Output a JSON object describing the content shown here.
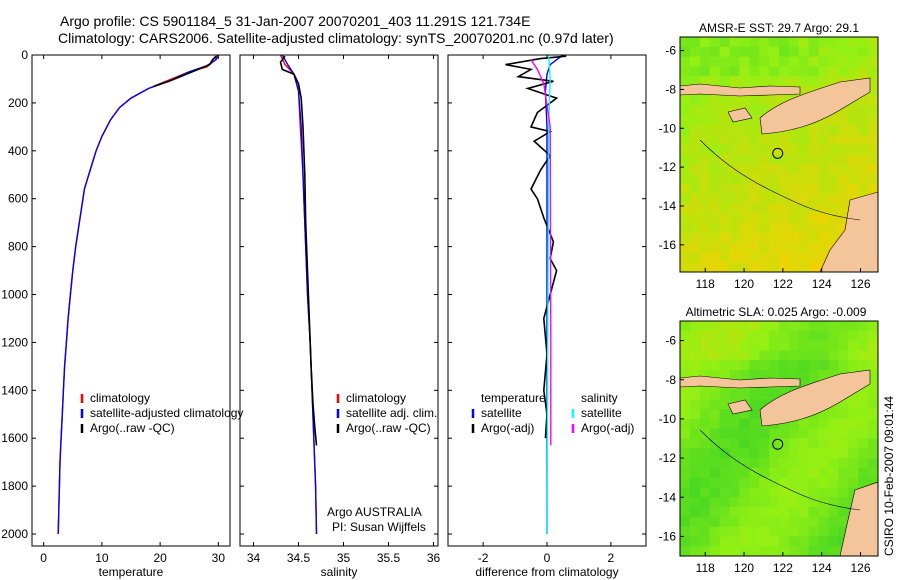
{
  "header": {
    "line1": "Argo profile: CS 5901184_5 31-Jan-2007 20070201_403 11.291S 121.734E",
    "line2": "Climatology: CARS2006. Satellite-adjusted climatology: synTS_20070201.nc (0.97d later)"
  },
  "colors": {
    "climatology": "#ff0000",
    "satellite": "#0000ff",
    "argo": "#000000",
    "salinity_satellite": "#00ffff",
    "salinity_argo": "#ff00ff",
    "land": "#f4c49a"
  },
  "chart_data": [
    {
      "type": "line",
      "xlabel": "temperature",
      "ylabel": "",
      "xlim": [
        -2,
        32
      ],
      "ylim": [
        2050,
        0
      ],
      "xticks": [
        0,
        10,
        20,
        30
      ],
      "yticks": [
        0,
        200,
        400,
        600,
        800,
        1000,
        1200,
        1400,
        1600,
        1800,
        2000
      ],
      "legend": {
        "position": "lower-right",
        "entries": [
          "climatology",
          "satellite-adjusted climatology",
          "Argo(..raw -QC)"
        ]
      },
      "series": [
        {
          "name": "climatology",
          "color": "#ff0000",
          "points": [
            [
              29.8,
              0
            ],
            [
              29.5,
              20
            ],
            [
              28,
              50
            ],
            [
              25,
              70
            ],
            [
              21,
              110
            ],
            [
              18,
              140
            ],
            [
              15,
              180
            ],
            [
              13,
              220
            ],
            [
              11.5,
              270
            ],
            [
              10,
              340
            ],
            [
              9,
              400
            ],
            [
              8,
              480
            ],
            [
              7,
              560
            ],
            [
              6.5,
              640
            ],
            [
              6,
              720
            ],
            [
              5.5,
              800
            ],
            [
              5,
              900
            ],
            [
              4.6,
              1000
            ],
            [
              4.2,
              1100
            ],
            [
              3.9,
              1200
            ],
            [
              3.6,
              1300
            ],
            [
              3.4,
              1400
            ],
            [
              3.2,
              1500
            ],
            [
              3,
              1600
            ],
            [
              2.8,
              1700
            ],
            [
              2.7,
              1800
            ],
            [
              2.6,
              1900
            ],
            [
              2.5,
              2000
            ]
          ]
        },
        {
          "name": "satellite-adjusted climatology",
          "color": "#0000ff",
          "points": [
            [
              30,
              0
            ],
            [
              29.6,
              20
            ],
            [
              28,
              45
            ],
            [
              25,
              70
            ],
            [
              21.5,
              110
            ],
            [
              18,
              140
            ],
            [
              15,
              180
            ],
            [
              13,
              220
            ],
            [
              11.5,
              270
            ],
            [
              10,
              340
            ],
            [
              9,
              400
            ],
            [
              8,
              480
            ],
            [
              7,
              560
            ],
            [
              6.5,
              640
            ],
            [
              6,
              720
            ],
            [
              5.5,
              800
            ],
            [
              5,
              900
            ],
            [
              4.6,
              1000
            ],
            [
              4.2,
              1100
            ],
            [
              3.9,
              1200
            ],
            [
              3.6,
              1300
            ],
            [
              3.4,
              1400
            ],
            [
              3.2,
              1500
            ],
            [
              3,
              1600
            ],
            [
              2.8,
              1700
            ],
            [
              2.7,
              1800
            ],
            [
              2.6,
              1900
            ],
            [
              2.5,
              2000
            ]
          ]
        },
        {
          "name": "Argo(..raw -QC)",
          "color": "#000000",
          "points": [
            [
              29.6,
              5
            ],
            [
              29,
              20
            ],
            [
              28.5,
              40
            ],
            [
              26,
              65
            ],
            [
              22,
              105
            ],
            [
              19,
              130
            ]
          ]
        }
      ]
    },
    {
      "type": "line",
      "xlabel": "salinity",
      "ylabel": "",
      "xlim": [
        33.85,
        36.05
      ],
      "ylim": [
        2050,
        0
      ],
      "xticks": [
        34,
        34.5,
        35,
        35.5,
        36
      ],
      "xtick_labels": [
        "34",
        "34.5",
        "35",
        "35.5",
        "36"
      ],
      "legend": {
        "position": "lower-right",
        "entries": [
          "climatology",
          "satellite adj. clim.",
          "Argo(..raw -QC)"
        ]
      },
      "annotation": {
        "line1": "Argo AUSTRALIA",
        "line2": "PI: Susan Wijffels"
      },
      "series": [
        {
          "name": "climatology",
          "color": "#ff0000",
          "points": [
            [
              34.3,
              0
            ],
            [
              34.35,
              40
            ],
            [
              34.45,
              80
            ],
            [
              34.5,
              150
            ],
            [
              34.52,
              300
            ],
            [
              34.55,
              500
            ],
            [
              34.58,
              800
            ],
            [
              34.6,
              1000
            ],
            [
              34.63,
              1200
            ],
            [
              34.65,
              1400
            ],
            [
              34.67,
              1600
            ],
            [
              34.69,
              1800
            ],
            [
              34.7,
              2000
            ]
          ]
        },
        {
          "name": "satellite adj. clim.",
          "color": "#0000ff",
          "points": [
            [
              34.32,
              0
            ],
            [
              34.38,
              40
            ],
            [
              34.45,
              80
            ],
            [
              34.5,
              150
            ],
            [
              34.53,
              300
            ],
            [
              34.55,
              500
            ],
            [
              34.58,
              800
            ],
            [
              34.6,
              1000
            ],
            [
              34.63,
              1200
            ],
            [
              34.65,
              1400
            ],
            [
              34.67,
              1600
            ],
            [
              34.69,
              1800
            ],
            [
              34.7,
              2000
            ]
          ]
        },
        {
          "name": "Argo(..raw -QC)",
          "color": "#000000",
          "points": [
            [
              34.35,
              5
            ],
            [
              34.3,
              30
            ],
            [
              34.32,
              60
            ],
            [
              34.45,
              80
            ],
            [
              34.5,
              120
            ],
            [
              34.53,
              180
            ],
            [
              34.55,
              300
            ],
            [
              34.57,
              500
            ],
            [
              34.58,
              700
            ],
            [
              34.6,
              900
            ],
            [
              34.62,
              1100
            ],
            [
              34.64,
              1300
            ],
            [
              34.66,
              1450
            ],
            [
              34.68,
              1550
            ],
            [
              34.7,
              1630
            ]
          ]
        }
      ]
    },
    {
      "type": "line",
      "xlabel": "difference from climatology",
      "ylabel": "",
      "xlim": [
        -3.1,
        3.1
      ],
      "ylim": [
        2050,
        0
      ],
      "xticks": [
        -2,
        0,
        2
      ],
      "legend": {
        "position": "lower-right",
        "entries": [
          "temperature",
          "satellite",
          "Argo(-adj)",
          "salinity",
          "satellite",
          "Argo(-adj)"
        ]
      },
      "series": [
        {
          "name": "temperature satellite",
          "color": "#0000ff",
          "points": [
            [
              0.5,
              0
            ],
            [
              0.3,
              20
            ],
            [
              0.1,
              40
            ],
            [
              0,
              80
            ],
            [
              -0.05,
              150
            ],
            [
              0,
              300
            ],
            [
              0,
              2000
            ]
          ]
        },
        {
          "name": "temperature Argo(-adj)",
          "color": "#000000",
          "points": [
            [
              0.6,
              5
            ],
            [
              -0.2,
              15
            ],
            [
              -1.3,
              40
            ],
            [
              -0.5,
              60
            ],
            [
              -0.9,
              90
            ],
            [
              0.2,
              110
            ],
            [
              -0.6,
              140
            ],
            [
              0.3,
              180
            ],
            [
              -0.3,
              240
            ],
            [
              -0.5,
              300
            ],
            [
              0.1,
              320
            ],
            [
              -0.4,
              360
            ],
            [
              0.1,
              420
            ],
            [
              -0.2,
              480
            ],
            [
              -0.5,
              560
            ],
            [
              -0.3,
              600
            ],
            [
              -0.1,
              680
            ],
            [
              0.2,
              780
            ],
            [
              0.1,
              850
            ],
            [
              0.3,
              900
            ],
            [
              0.1,
              1000
            ],
            [
              -0.1,
              1100
            ],
            [
              0,
              1250
            ],
            [
              -0.1,
              1400
            ],
            [
              0,
              1500
            ],
            [
              -0.05,
              1600
            ]
          ]
        },
        {
          "name": "salinity satellite",
          "color": "#00ffff",
          "points": [
            [
              0.05,
              0
            ],
            [
              0.1,
              100
            ],
            [
              0.05,
              300
            ],
            [
              0,
              2000
            ]
          ]
        },
        {
          "name": "salinity Argo(-adj)",
          "color": "#ff00ff",
          "points": [
            [
              -0.5,
              20
            ],
            [
              -0.3,
              60
            ],
            [
              -0.1,
              120
            ],
            [
              0.1,
              300
            ],
            [
              0.12,
              1200
            ],
            [
              0.12,
              1630
            ]
          ]
        }
      ]
    },
    {
      "type": "heatmap",
      "title": "AMSR-E SST: 29.7 Argo: 29.1",
      "xlim": [
        116.7,
        126.9
      ],
      "ylim": [
        -17.4,
        -5.3
      ],
      "xticks": [
        118,
        120,
        122,
        124,
        126
      ],
      "yticks": [
        -6,
        -8,
        -10,
        -12,
        -14,
        -16
      ],
      "profile_location": [
        121.734,
        -11.291
      ]
    },
    {
      "type": "heatmap",
      "title": "Altimetric SLA: 0.025 Argo: -0.009",
      "xlim": [
        116.7,
        126.9
      ],
      "ylim": [
        -17.0,
        -5.0
      ],
      "xticks": [
        118,
        120,
        122,
        124,
        126
      ],
      "yticks": [
        -6,
        -8,
        -10,
        -12,
        -14,
        -16
      ],
      "profile_location": [
        121.734,
        -11.291
      ]
    }
  ],
  "credit": "CSIRO 10-Feb-2007 09:01:44"
}
